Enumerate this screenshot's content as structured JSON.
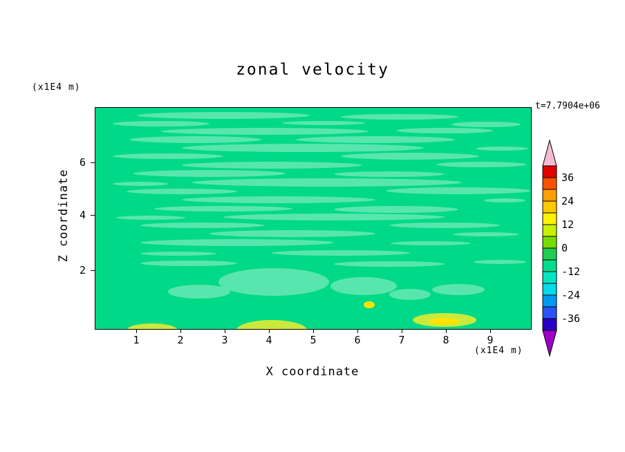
{
  "title": "zonal velocity",
  "annotations": {
    "timestamp": "t=7.7904e+06"
  },
  "axes": {
    "x_label": "X coordinate",
    "x_unit": "(x1E4 m)",
    "y_label": "Z coordinate",
    "y_unit": "(x1E4 m)",
    "x_tick_labels": [
      "1",
      "2",
      "3",
      "4",
      "5",
      "6",
      "7",
      "8",
      "9"
    ],
    "y_tick_labels": [
      "6",
      "4",
      "2"
    ]
  },
  "colorbar": {
    "tick_labels": [
      "36",
      "24",
      "12",
      "0",
      "-12",
      "-24",
      "-36"
    ],
    "segment_colors_top_to_bottom": [
      "#e30000",
      "#ff5200",
      "#ff9e00",
      "#ffc900",
      "#fff200",
      "#c9f000",
      "#76dc00",
      "#1fcd52",
      "#00dc8c",
      "#00e6c3",
      "#00dcea",
      "#0099f0",
      "#2b52ff",
      "#2a00c8"
    ],
    "top_arrow_color": "#f3bcd2",
    "bottom_arrow_color": "#9e00c8"
  },
  "field_colors": {
    "base_green": "#00d987",
    "streak_green": "#59e6ae",
    "yellow": "#ffe400",
    "yellow_green": "#c9ea3c"
  },
  "chart_data": {
    "type": "heatmap",
    "title": "zonal velocity",
    "xlabel": "X coordinate",
    "ylabel": "Z coordinate",
    "x_units": "x1E4 m",
    "y_units": "x1E4 m",
    "xlim": [
      0,
      9.9
    ],
    "ylim": [
      0,
      8
    ],
    "x_ticks": [
      1,
      2,
      3,
      4,
      5,
      6,
      7,
      8,
      9
    ],
    "y_ticks": [
      2,
      4,
      6
    ],
    "time": "t=7.7904e+06",
    "contour_interval": 6,
    "colorbar_tick_values": [
      36,
      24,
      12,
      0,
      -12,
      -24,
      -36
    ],
    "colorbar_range": [
      -42,
      42
    ],
    "field_summary": "Field is nearly uniform near 0 (green) with thin horizontal lighter-green streaks of slightly different velocity; small yellow positive anomalies (~12-18) near the bottom boundary around x~4, x~5.3 and x~8."
  }
}
